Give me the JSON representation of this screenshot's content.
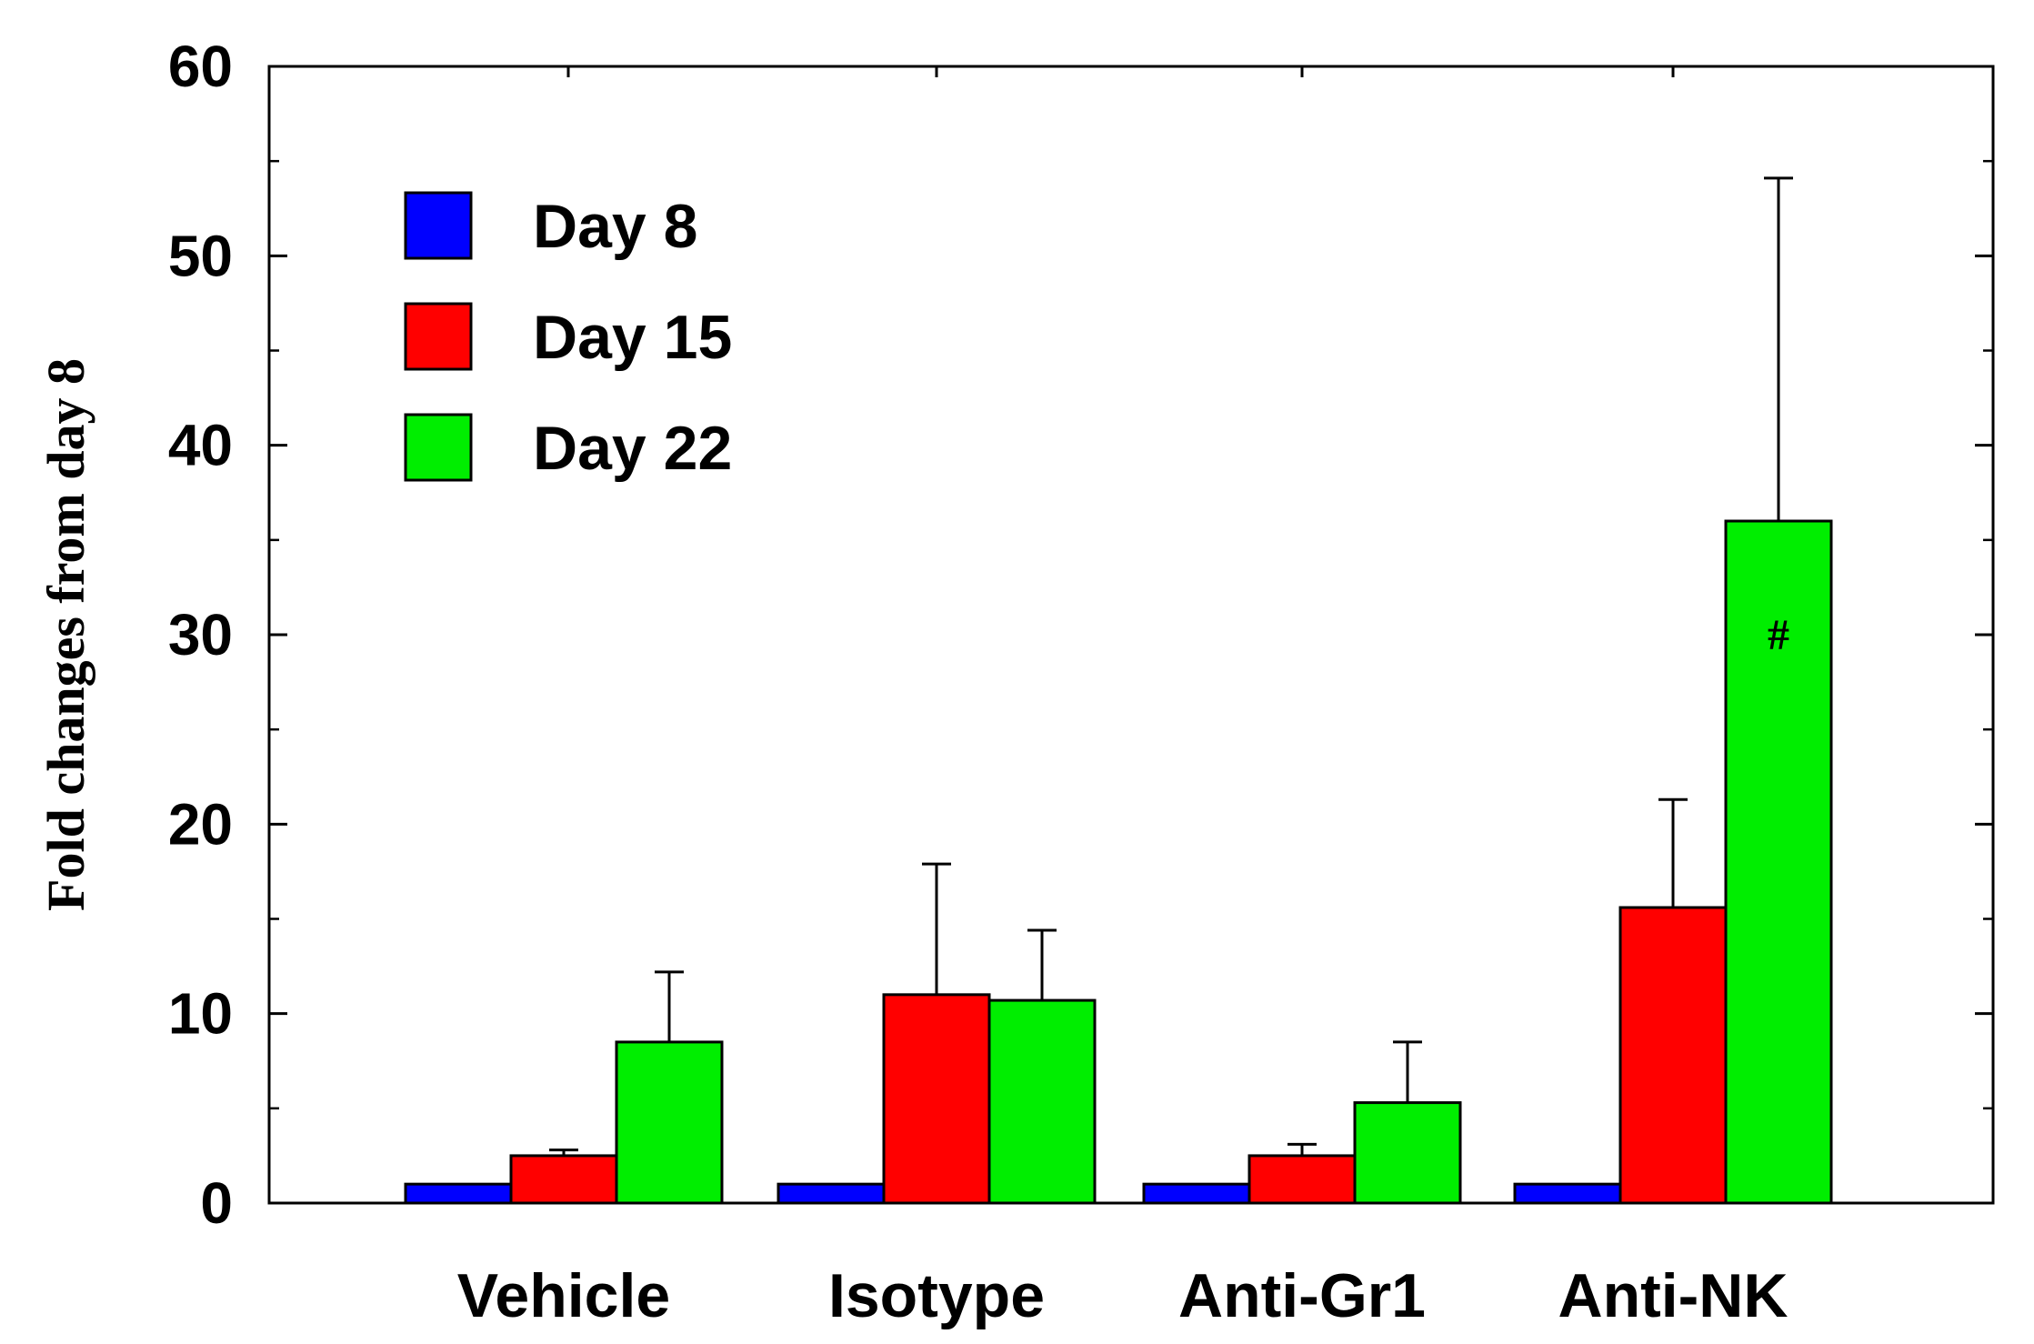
{
  "chart_data": {
    "type": "bar",
    "title": "",
    "xlabel": "",
    "ylabel": "Fold changes from day 8",
    "ylim": [
      0,
      60
    ],
    "yticks": [
      0,
      10,
      20,
      30,
      40,
      50,
      60
    ],
    "grid": false,
    "legend_position": "top-left",
    "categories": [
      "Vehicle",
      "Isotype",
      "Anti-Gr1",
      "Anti-NK"
    ],
    "series": [
      {
        "name": "Day 8",
        "color": "#0000ff",
        "values": [
          1.0,
          1.0,
          1.0,
          1.0
        ],
        "errors": [
          0.0,
          0.0,
          0.0,
          0.0
        ]
      },
      {
        "name": "Day 15",
        "color": "#ff0000",
        "values": [
          2.5,
          11.0,
          2.5,
          15.6
        ],
        "errors": [
          0.3,
          6.9,
          0.6,
          5.7
        ]
      },
      {
        "name": "Day 22",
        "color": "#00ee00",
        "values": [
          8.5,
          10.7,
          5.3,
          36.0
        ],
        "errors": [
          3.7,
          3.7,
          3.2,
          18.1
        ]
      }
    ],
    "annotations": [
      {
        "text": "#",
        "category": "Anti-NK",
        "series": "Day 22",
        "y": 30
      }
    ]
  }
}
